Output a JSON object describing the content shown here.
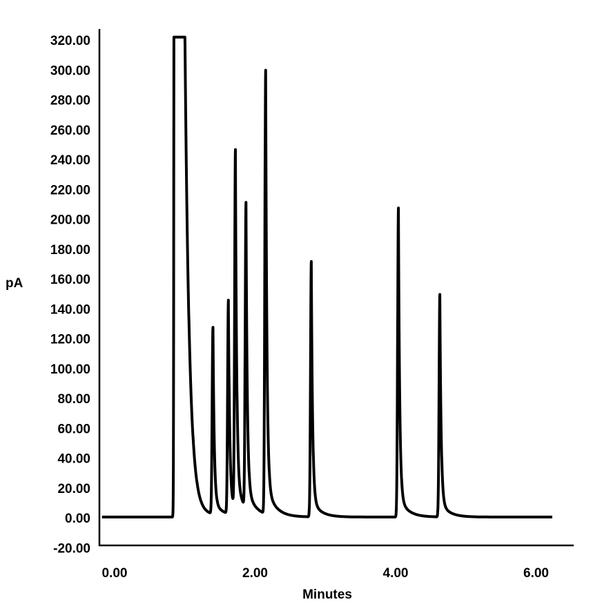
{
  "chart_data": {
    "type": "line",
    "title": "",
    "xlabel": "Minutes",
    "ylabel": "pA",
    "xlim": [
      -0.2,
      6.25
    ],
    "ylim": [
      -20,
      320
    ],
    "grid": false,
    "legend": "none",
    "x_ticks": [
      "0.00",
      "2.00",
      "4.00",
      "6.00"
    ],
    "x_tick_values": [
      0,
      2,
      4,
      6
    ],
    "y_ticks": [
      "320.00",
      "300.00",
      "280.00",
      "260.00",
      "240.00",
      "220.00",
      "200.00",
      "180.00",
      "160.00",
      "140.00",
      "120.00",
      "100.00",
      "80.00",
      "60.00",
      "40.00",
      "20.00",
      "0.00",
      "-20.00"
    ],
    "y_tick_values": [
      320,
      300,
      280,
      260,
      240,
      220,
      200,
      180,
      160,
      140,
      120,
      100,
      80,
      60,
      40,
      20,
      0,
      -20
    ],
    "trace_range": [
      -0.18,
      6.23
    ],
    "baseline": 0.5,
    "solvent_peak": {
      "start": 0.86,
      "end": 1.0,
      "saturated_at": 322
    },
    "peaks": [
      {
        "rt": 1.4,
        "height": 125
      },
      {
        "rt": 1.62,
        "height": 143
      },
      {
        "rt": 1.72,
        "height": 240
      },
      {
        "rt": 1.87,
        "height": 204
      },
      {
        "rt": 2.15,
        "height": 297
      },
      {
        "rt": 2.8,
        "height": 171
      },
      {
        "rt": 4.04,
        "height": 207
      },
      {
        "rt": 4.63,
        "height": 149
      }
    ],
    "color": "#000000"
  }
}
